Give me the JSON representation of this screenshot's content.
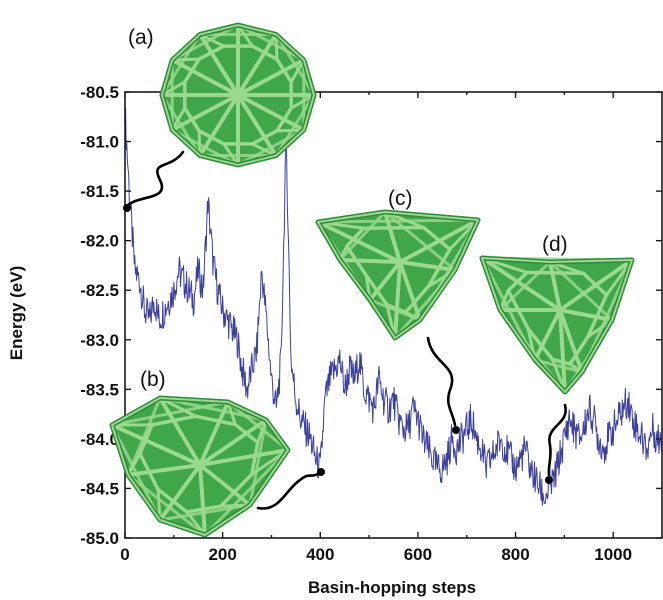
{
  "chart_data": {
    "type": "line",
    "xlabel": "Basin-hopping steps",
    "ylabel": "Energy (eV)",
    "xlim": [
      0,
      1100
    ],
    "ylim": [
      -85.0,
      -80.5
    ],
    "x_ticks": [
      0,
      200,
      400,
      600,
      800,
      1000
    ],
    "y_ticks": [
      -80.5,
      -81.0,
      -81.5,
      -82.0,
      -82.5,
      -83.0,
      -83.5,
      -84.0,
      -84.5,
      -85.0
    ],
    "x_tick_labels": [
      "0",
      "200",
      "400",
      "600",
      "800",
      "1000"
    ],
    "y_tick_labels": [
      "-80.5",
      "-81.0",
      "-81.5",
      "-82.0",
      "-82.5",
      "-83.0",
      "-83.5",
      "-84.0",
      "-84.5",
      "-85.0"
    ],
    "grid": false,
    "series": [
      {
        "color": "#3b3f9e",
        "x": [
          0,
          10,
          20,
          30,
          40,
          50,
          60,
          70,
          80,
          90,
          100,
          110,
          120,
          130,
          140,
          150,
          160,
          170,
          180,
          190,
          200,
          210,
          220,
          230,
          240,
          250,
          260,
          270,
          280,
          290,
          300,
          310,
          320,
          330,
          340,
          350,
          360,
          370,
          380,
          390,
          400,
          410,
          420,
          430,
          440,
          450,
          460,
          470,
          480,
          490,
          500,
          510,
          520,
          530,
          540,
          550,
          560,
          570,
          580,
          590,
          600,
          610,
          620,
          630,
          640,
          650,
          660,
          670,
          680,
          690,
          700,
          710,
          720,
          730,
          740,
          750,
          760,
          770,
          780,
          790,
          800,
          810,
          820,
          830,
          840,
          850,
          860,
          870,
          880,
          890,
          900,
          910,
          920,
          930,
          940,
          950,
          960,
          970,
          980,
          990,
          1000,
          1010,
          1020,
          1030,
          1040,
          1050,
          1060,
          1070,
          1080,
          1090,
          1100
        ],
        "y": [
          -80.7,
          -81.6,
          -82.3,
          -82.4,
          -82.7,
          -82.8,
          -82.6,
          -82.8,
          -82.7,
          -82.6,
          -82.5,
          -82.3,
          -82.4,
          -82.5,
          -82.6,
          -82.3,
          -82.5,
          -81.6,
          -82.2,
          -82.5,
          -82.7,
          -82.8,
          -82.9,
          -83.0,
          -83.3,
          -83.5,
          -83.3,
          -83.1,
          -82.3,
          -82.8,
          -83.4,
          -83.7,
          -83.2,
          -80.9,
          -83.2,
          -83.6,
          -83.8,
          -83.9,
          -84.0,
          -84.2,
          -84.3,
          -83.6,
          -83.4,
          -83.3,
          -83.2,
          -83.5,
          -83.3,
          -83.4,
          -83.2,
          -83.5,
          -83.6,
          -83.7,
          -83.4,
          -83.6,
          -83.7,
          -83.6,
          -83.8,
          -83.9,
          -83.9,
          -83.7,
          -83.8,
          -84.0,
          -84.1,
          -84.2,
          -84.3,
          -84.3,
          -84.2,
          -84.0,
          -84.1,
          -84.0,
          -83.9,
          -83.8,
          -84.0,
          -84.1,
          -84.3,
          -84.2,
          -84.1,
          -84.0,
          -84.1,
          -84.2,
          -84.3,
          -84.2,
          -84.1,
          -84.3,
          -84.4,
          -84.5,
          -84.6,
          -84.5,
          -84.4,
          -84.2,
          -84.0,
          -83.8,
          -83.9,
          -84.0,
          -83.9,
          -83.7,
          -83.8,
          -84.0,
          -84.1,
          -84.0,
          -83.9,
          -83.8,
          -83.7,
          -83.6,
          -83.8,
          -83.9,
          -84.0,
          -84.1,
          -83.9,
          -84.0,
          -84.0
        ]
      }
    ],
    "annotations": [
      "(a)",
      "(b)",
      "(c)",
      "(d)"
    ],
    "annotation_points": [
      {
        "label": "(a)",
        "x": 5,
        "y": -81.7
      },
      {
        "label": "(b)",
        "x": 395,
        "y": -84.35
      },
      {
        "label": "(c)",
        "x": 680,
        "y": -83.95
      },
      {
        "label": "(d)",
        "x": 865,
        "y": -84.45
      }
    ]
  },
  "colors": {
    "cluster_fill": "#3fa64a",
    "cluster_edge": "#9ad98e",
    "cluster_shadow": "#1f6b2c",
    "arrow": "#000000"
  },
  "clusters": [
    {
      "label": "(a)",
      "shape": "icosahedral-sphere"
    },
    {
      "label": "(b)",
      "shape": "truncated-cage"
    },
    {
      "label": "(c)",
      "shape": "tetrahedral"
    },
    {
      "label": "(d)",
      "shape": "tetrahedral"
    }
  ]
}
